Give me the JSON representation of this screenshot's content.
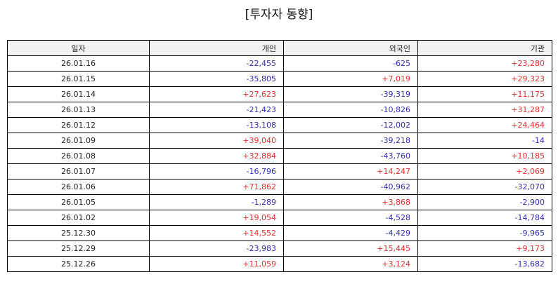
{
  "title": "[투자자 동향]",
  "colors": {
    "positive": "#e03030",
    "negative": "#3030b0",
    "header_bg": "#f2f2f2"
  },
  "table": {
    "headers": [
      "일자",
      "개인",
      "외국인",
      "기관"
    ],
    "rows": [
      [
        "26.01.16",
        "-22,455",
        "-625",
        "+23,280"
      ],
      [
        "26.01.15",
        "-35,805",
        "+7,019",
        "+29,323"
      ],
      [
        "26.01.14",
        "+27,623",
        "-39,319",
        "+11,175"
      ],
      [
        "26.01.13",
        "-21,423",
        "-10,826",
        "+31,287"
      ],
      [
        "26.01.12",
        "-13,108",
        "-12,002",
        "+24,464"
      ],
      [
        "26.01.09",
        "+39,040",
        "-39,218",
        "-14"
      ],
      [
        "26.01.08",
        "+32,884",
        "-43,760",
        "+10,185"
      ],
      [
        "26.01.07",
        "-16,796",
        "+14,247",
        "+2,069"
      ],
      [
        "26.01.06",
        "+71,862",
        "-40,962",
        "-32,070"
      ],
      [
        "26.01.05",
        "-1,289",
        "+3,868",
        "-2,900"
      ],
      [
        "26.01.02",
        "+19,054",
        "-4,528",
        "-14,784"
      ],
      [
        "25.12.30",
        "+14,552",
        "-4,429",
        "-9,965"
      ],
      [
        "25.12.29",
        "-23,983",
        "+15,445",
        "+9,173"
      ],
      [
        "25.12.26",
        "+11,059",
        "+3,124",
        "-13,682"
      ]
    ]
  }
}
